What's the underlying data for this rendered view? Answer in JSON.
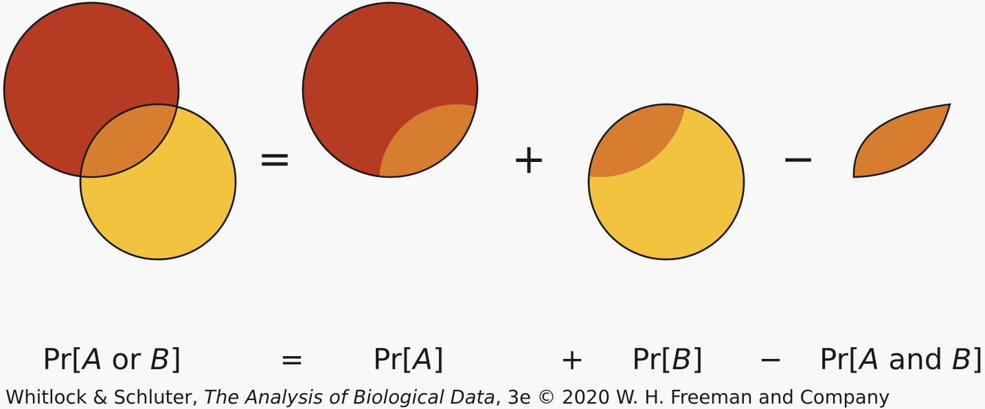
{
  "colors": {
    "event_a": "#b53c23",
    "event_b": "#f2c33e",
    "overlap": "#d67d2f",
    "outline": "#1a1a1a",
    "background": "#f8f8f8"
  },
  "diagram": {
    "equals_symbol": "=",
    "plus_symbol": "+",
    "minus_symbol": "−"
  },
  "formula": {
    "pr_a_or_b": {
      "prefix": "Pr[",
      "var_a": "A",
      "connector": " or ",
      "var_b": "B",
      "suffix": "]"
    },
    "equals": "=",
    "pr_a": {
      "prefix": "Pr[",
      "var": "A",
      "suffix": "]"
    },
    "plus": "+",
    "pr_b": {
      "prefix": "Pr[",
      "var": "B",
      "suffix": "]"
    },
    "minus": "−",
    "pr_a_and_b": {
      "prefix": "Pr[",
      "var_a": "A",
      "connector": " and ",
      "var_b": "B",
      "suffix": "]"
    }
  },
  "credit": {
    "authors": "Whitlock & Schluter, ",
    "book_title": "The Analysis of Biological Data",
    "edition_copyright": ", 3e © 2020 W. H. Freeman and Company"
  }
}
